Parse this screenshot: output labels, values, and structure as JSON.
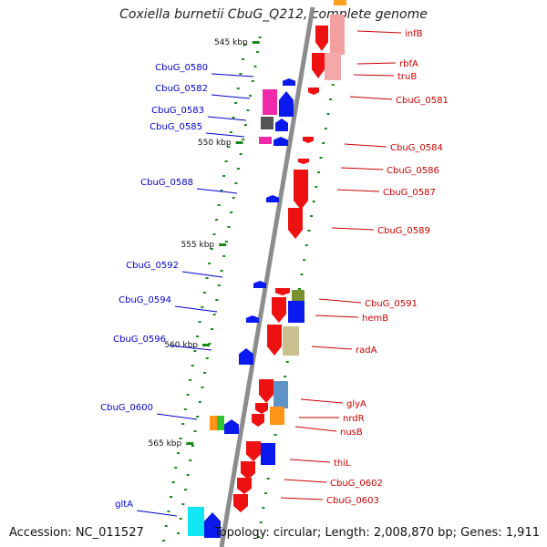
{
  "title": "Coxiella burnetii CbuG_Q212, complete genome",
  "accession_text": "Accession: NC_011527",
  "summary_text": "Topology: circular; Length: 2,008,870 bp; Genes: 1,911",
  "colors": {
    "forward_label": "#cc0000",
    "reverse_label": "#0000cc",
    "backbone": "#8c8c8c",
    "tick": "#1a8a1a"
  },
  "scale_ticks": [
    "545 kbp",
    "550 kbp",
    "555 kbp",
    "560 kbp",
    "565 kbp"
  ],
  "forward_genes": [
    {
      "label": "infB"
    },
    {
      "label": "rbfA"
    },
    {
      "label": "truB"
    },
    {
      "label": "CbuG_0581"
    },
    {
      "label": "CbuG_0584"
    },
    {
      "label": "CbuG_0586"
    },
    {
      "label": "CbuG_0587"
    },
    {
      "label": "CbuG_0589"
    },
    {
      "label": "CbuG_0591"
    },
    {
      "label": "hemB"
    },
    {
      "label": "radA"
    },
    {
      "label": "glyA"
    },
    {
      "label": "nrdR"
    },
    {
      "label": "nusB"
    },
    {
      "label": "thiL"
    },
    {
      "label": "CbuG_0602"
    },
    {
      "label": "CbuG_0603"
    }
  ],
  "reverse_genes": [
    {
      "label": "CbuG_0580"
    },
    {
      "label": "CbuG_0582"
    },
    {
      "label": "CbuG_0583"
    },
    {
      "label": "CbuG_0585"
    },
    {
      "label": "CbuG_0588"
    },
    {
      "label": "CbuG_0592"
    },
    {
      "label": "CbuG_0594"
    },
    {
      "label": "CbuG_0596"
    },
    {
      "label": "CbuG_0600"
    },
    {
      "label": "gltA"
    }
  ]
}
